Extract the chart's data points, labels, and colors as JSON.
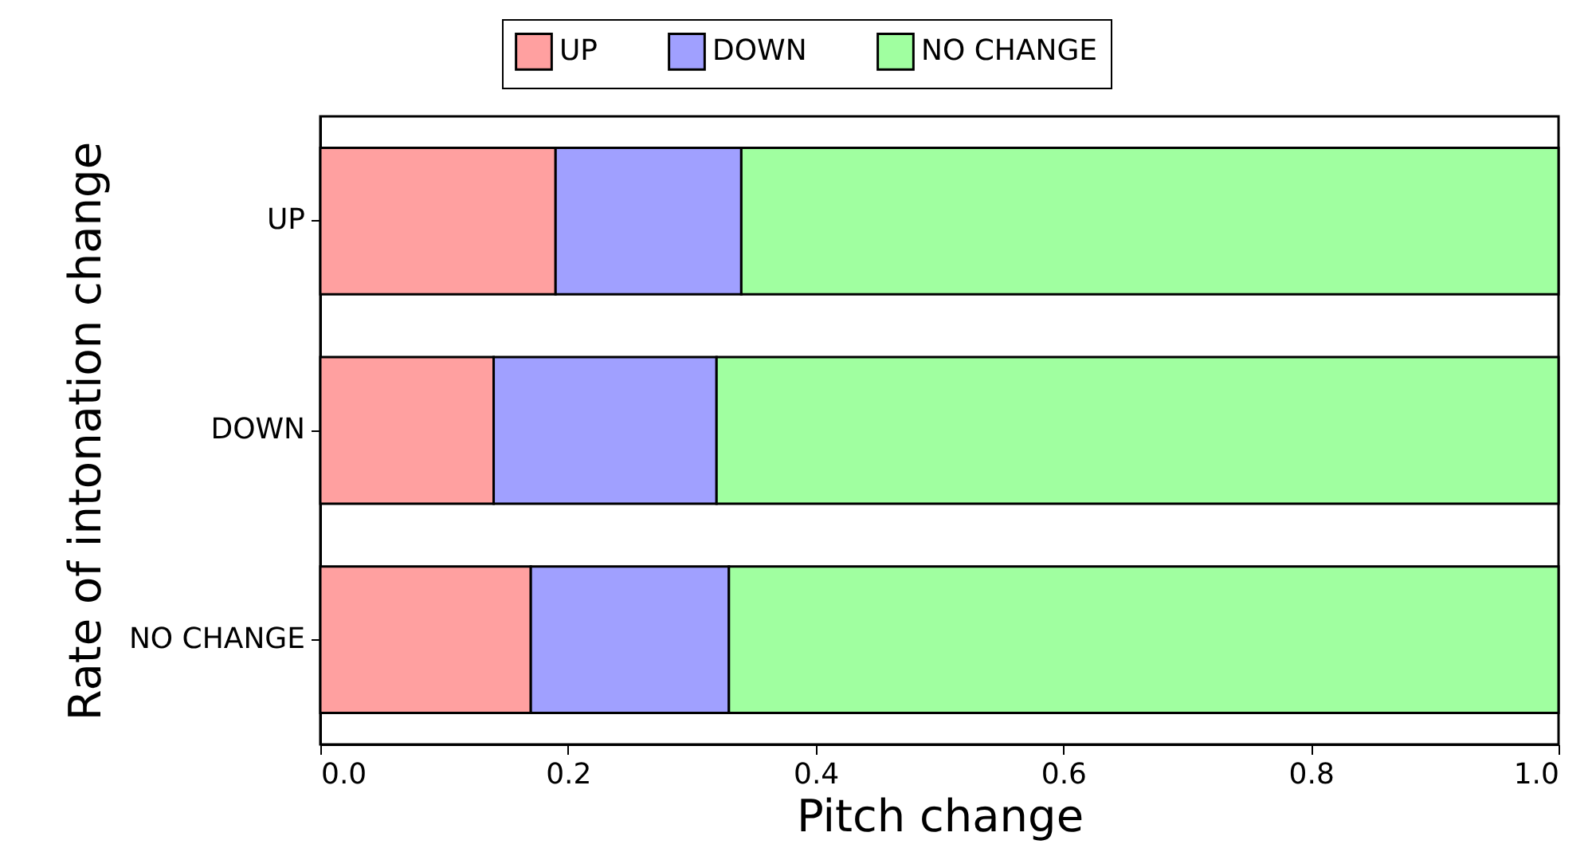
{
  "chart_data": {
    "type": "bar",
    "orientation": "horizontal",
    "stacked": true,
    "xlabel": "Pitch change",
    "ylabel": "Rate of intonation change",
    "categories": [
      "UP",
      "DOWN",
      "NO CHANGE"
    ],
    "series": [
      {
        "name": "UP",
        "color": "#ffa0a0",
        "values": [
          0.19,
          0.14,
          0.17
        ]
      },
      {
        "name": "DOWN",
        "color": "#a0a0ff",
        "values": [
          0.15,
          0.18,
          0.16
        ]
      },
      {
        "name": "NO CHANGE",
        "color": "#a0ffa0",
        "values": [
          0.66,
          0.68,
          0.67
        ]
      }
    ],
    "xlim": [
      0.0,
      1.0
    ],
    "xticks": [
      {
        "value": 0,
        "label": "0.0"
      },
      {
        "value": 0.2,
        "label": "0.2"
      },
      {
        "value": 0.4,
        "label": "0.4"
      },
      {
        "value": 0.6,
        "label": "0.6"
      },
      {
        "value": 0.8,
        "label": "0.8"
      },
      {
        "value": 1,
        "label": "1.0"
      }
    ],
    "legend": "top",
    "grid": false
  }
}
